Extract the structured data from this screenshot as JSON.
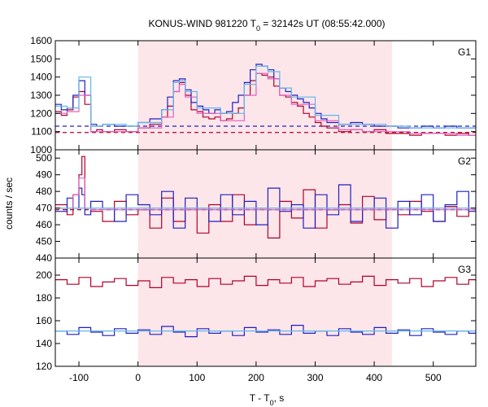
{
  "title": "KONUS-WIND 981220 T",
  "title_sub": "0",
  "title_rest": " = 32142s UT (08:55:42.000)",
  "xlabel_main": "T - T",
  "xlabel_sub": "0",
  "xlabel_rest": ", s",
  "ylabel": "counts / sec",
  "colors": {
    "red": "#b0002a",
    "blue": "#2020c0",
    "pink": "#e060c0",
    "cyan": "#60b8e8",
    "shade": "#fde6ea"
  },
  "chart_data": {
    "type": "line",
    "xlim": [
      -140,
      572
    ],
    "xticks": [
      -100,
      0,
      100,
      200,
      300,
      400,
      500
    ],
    "xtick_labels": [
      "-100",
      "0",
      "100",
      "200",
      "300",
      "400",
      "500"
    ],
    "shaded_interval": [
      0,
      430
    ],
    "panels": [
      {
        "name": "G1",
        "ylim": [
          1000,
          1600
        ],
        "yticks": [
          1000,
          1100,
          1200,
          1300,
          1400,
          1500,
          1600
        ],
        "ytick_labels": [
          "1000",
          "1100",
          "1200",
          "1300",
          "1400",
          "1500",
          "1600"
        ],
        "background_levels": [
          {
            "color": "blue",
            "value": 1130
          },
          {
            "color": "red",
            "value": 1095
          }
        ],
        "curves": [
          {
            "color": "red",
            "x": [
              -140,
              -130,
              -120,
              -110,
              -100,
              -90,
              -80,
              -70,
              -60,
              -40,
              -20,
              0,
              20,
              40,
              50,
              60,
              70,
              80,
              90,
              100,
              110,
              120,
              130,
              140,
              150,
              160,
              170,
              180,
              190,
              200,
              210,
              220,
              230,
              240,
              250,
              260,
              270,
              280,
              290,
              300,
              310,
              320,
              340,
              360,
              380,
              400,
              420,
              440,
              460,
              480,
              500,
              520,
              540,
              560,
              572
            ],
            "y": [
              1210,
              1190,
              1220,
              1290,
              1320,
              1250,
              1100,
              1110,
              1100,
              1110,
              1100,
              1120,
              1140,
              1180,
              1240,
              1320,
              1370,
              1300,
              1220,
              1210,
              1180,
              1170,
              1180,
              1160,
              1170,
              1200,
              1230,
              1300,
              1380,
              1420,
              1410,
              1400,
              1350,
              1300,
              1290,
              1260,
              1240,
              1200,
              1180,
              1150,
              1130,
              1120,
              1100,
              1110,
              1100,
              1110,
              1090,
              1090,
              1080,
              1090,
              1090,
              1080,
              1090,
              1080,
              1080
            ]
          },
          {
            "color": "blue",
            "x": [
              -140,
              -130,
              -120,
              -110,
              -100,
              -90,
              -80,
              -70,
              -60,
              -40,
              -20,
              0,
              20,
              40,
              50,
              60,
              70,
              80,
              90,
              100,
              110,
              120,
              130,
              140,
              150,
              160,
              170,
              180,
              190,
              200,
              210,
              220,
              230,
              240,
              250,
              260,
              270,
              280,
              290,
              300,
              310,
              320,
              340,
              360,
              380,
              400,
              420,
              440,
              460,
              480,
              500,
              520,
              540,
              560,
              572
            ],
            "y": [
              1250,
              1220,
              1230,
              1300,
              1380,
              1300,
              1140,
              1130,
              1140,
              1130,
              1130,
              1150,
              1170,
              1220,
              1290,
              1380,
              1390,
              1330,
              1260,
              1240,
              1220,
              1200,
              1220,
              1200,
              1210,
              1260,
              1300,
              1370,
              1440,
              1470,
              1460,
              1440,
              1390,
              1340,
              1320,
              1300,
              1280,
              1260,
              1230,
              1200,
              1170,
              1150,
              1140,
              1150,
              1140,
              1130,
              1130,
              1120,
              1120,
              1130,
              1120,
              1130,
              1120,
              1120,
              1120
            ]
          },
          {
            "color": "pink",
            "x": [
              -140,
              -120,
              -100,
              -80,
              -60,
              -20,
              0,
              40,
              60,
              70,
              80,
              100,
              140,
              180,
              200,
              220,
              240,
              260,
              300,
              340,
              380,
              420,
              460,
              500,
              540,
              572
            ],
            "y": [
              1200,
              1210,
              1300,
              1100,
              1100,
              1100,
              1120,
              1180,
              1320,
              1360,
              1290,
              1200,
              1160,
              1300,
              1420,
              1390,
              1300,
              1250,
              1160,
              1110,
              1100,
              1100,
              1090,
              1090,
              1080,
              1080
            ]
          },
          {
            "color": "cyan",
            "x": [
              -140,
              -120,
              -100,
              -80,
              -60,
              -20,
              0,
              40,
              60,
              70,
              80,
              100,
              140,
              180,
              200,
              220,
              240,
              260,
              300,
              340,
              380,
              420,
              460,
              500,
              540,
              572
            ],
            "y": [
              1240,
              1230,
              1400,
              1130,
              1140,
              1130,
              1150,
              1220,
              1370,
              1380,
              1320,
              1230,
              1200,
              1360,
              1460,
              1430,
              1340,
              1290,
              1190,
              1140,
              1140,
              1130,
              1120,
              1120,
              1120,
              1120
            ]
          }
        ]
      },
      {
        "name": "G2",
        "ylim": [
          440,
          505
        ],
        "yticks": [
          440,
          450,
          460,
          470,
          480,
          490,
          500
        ],
        "ytick_labels": [
          "440",
          "450",
          "460",
          "470",
          "480",
          "490",
          "500"
        ],
        "background_levels": [
          {
            "color": "red",
            "value": 469
          },
          {
            "color": "blue",
            "value": 470
          }
        ],
        "curves": [
          {
            "color": "red",
            "x": [
              -140,
              -120,
              -110,
              -100,
              -95,
              -90,
              -80,
              -60,
              -40,
              -20,
              0,
              20,
              40,
              60,
              80,
              100,
              120,
              140,
              160,
              180,
              200,
              220,
              240,
              260,
              280,
              300,
              320,
              340,
              360,
              380,
              400,
              420,
              440,
              460,
              480,
              500,
              520,
              540,
              560,
              572
            ],
            "y": [
              472,
              466,
              478,
              490,
              501,
              470,
              468,
              462,
              474,
              466,
              469,
              458,
              476,
              462,
              470,
              455,
              472,
              462,
              478,
              460,
              470,
              452,
              474,
              464,
              481,
              458,
              469,
              472,
              461,
              477,
              463,
              470,
              466,
              474,
              468,
              462,
              471,
              465,
              470,
              468
            ]
          },
          {
            "color": "blue",
            "x": [
              -140,
              -120,
              -110,
              -100,
              -95,
              -90,
              -80,
              -60,
              -40,
              -20,
              0,
              20,
              40,
              60,
              80,
              100,
              120,
              140,
              160,
              180,
              200,
              220,
              240,
              260,
              280,
              300,
              320,
              340,
              360,
              380,
              400,
              420,
              440,
              460,
              480,
              500,
              520,
              540,
              560,
              572
            ],
            "y": [
              468,
              476,
              470,
              482,
              478,
              466,
              474,
              470,
              462,
              478,
              472,
              466,
              480,
              458,
              476,
              470,
              462,
              478,
              466,
              474,
              460,
              482,
              468,
              472,
              458,
              478,
              466,
              484,
              462,
              470,
              476,
              458,
              474,
              466,
              478,
              462,
              472,
              480,
              468,
              472
            ]
          },
          {
            "color": "pink",
            "x": [
              -140,
              -110,
              -100,
              -90,
              -80,
              572
            ],
            "y": [
              470,
              478,
              488,
              470,
              469,
              469
            ]
          },
          {
            "color": "cyan",
            "x": [
              -140,
              572
            ],
            "y": [
              470,
              470
            ]
          }
        ]
      },
      {
        "name": "G3",
        "ylim": [
          120,
          215
        ],
        "yticks": [
          120,
          140,
          160,
          180,
          200
        ],
        "ytick_labels": [
          "120",
          "140",
          "160",
          "180",
          "200"
        ],
        "background_levels": [],
        "curves": [
          {
            "color": "red",
            "x": [
              -140,
              -120,
              -100,
              -80,
              -60,
              -40,
              -20,
              0,
              20,
              40,
              60,
              80,
              100,
              120,
              140,
              160,
              180,
              200,
              220,
              240,
              260,
              280,
              300,
              320,
              340,
              360,
              380,
              400,
              420,
              440,
              460,
              480,
              500,
              520,
              540,
              560,
              572
            ],
            "y": [
              196,
              192,
              198,
              190,
              194,
              197,
              191,
              195,
              189,
              198,
              193,
              196,
              190,
              197,
              192,
              195,
              199,
              191,
              196,
              193,
              198,
              190,
              195,
              197,
              192,
              194,
              199,
              191,
              196,
              193,
              197,
              190,
              195,
              198,
              192,
              196,
              194
            ]
          },
          {
            "color": "blue",
            "x": [
              -140,
              -120,
              -100,
              -80,
              -60,
              -40,
              -20,
              0,
              20,
              40,
              60,
              80,
              100,
              120,
              140,
              160,
              180,
              200,
              220,
              240,
              260,
              280,
              300,
              320,
              340,
              360,
              380,
              400,
              420,
              440,
              460,
              480,
              500,
              520,
              540,
              560,
              572
            ],
            "y": [
              151,
              148,
              154,
              150,
              147,
              153,
              149,
              152,
              148,
              155,
              150,
              146,
              153,
              149,
              151,
              147,
              154,
              150,
              152,
              148,
              156,
              149,
              151,
              147,
              153,
              150,
              148,
              154,
              149,
              152,
              147,
              153,
              150,
              148,
              151,
              149,
              150
            ]
          },
          {
            "color": "cyan",
            "x": [
              -140,
              572
            ],
            "y": [
              151,
              151
            ]
          }
        ]
      }
    ]
  }
}
